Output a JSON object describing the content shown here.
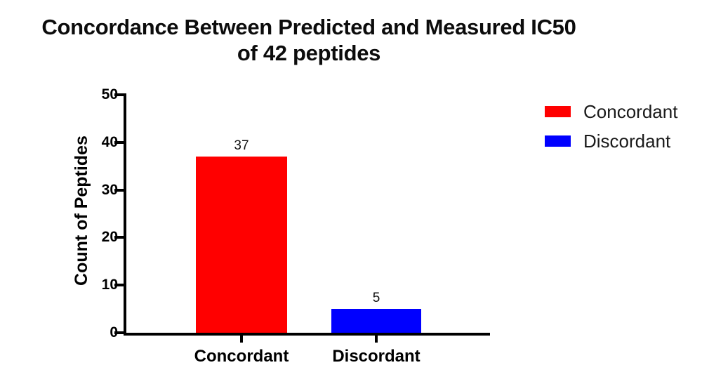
{
  "figure": {
    "background": "#ffffff"
  },
  "chart_data": {
    "type": "bar",
    "title": "Concordance Between Predicted and Measured IC50 of 42 peptides",
    "title_lines": [
      "Concordance Between Predicted and Measured IC50",
      "of 42 peptides"
    ],
    "categories": [
      "Concordant",
      "Discordant"
    ],
    "values": [
      37,
      5
    ],
    "bar_value_labels": [
      "37",
      "5"
    ],
    "bar_colors": [
      "#ff0000",
      "#0000ff"
    ],
    "xlabel": "",
    "ylabel": "Count of Peptides",
    "ylim": [
      0,
      50
    ],
    "yticks": [
      0,
      10,
      20,
      30,
      40,
      50
    ],
    "grid": false,
    "axis_color": "#000000",
    "legend_position": "right",
    "legend": [
      {
        "label": "Concordant",
        "color": "#ff0000"
      },
      {
        "label": "Discordant",
        "color": "#0000ff"
      }
    ]
  }
}
